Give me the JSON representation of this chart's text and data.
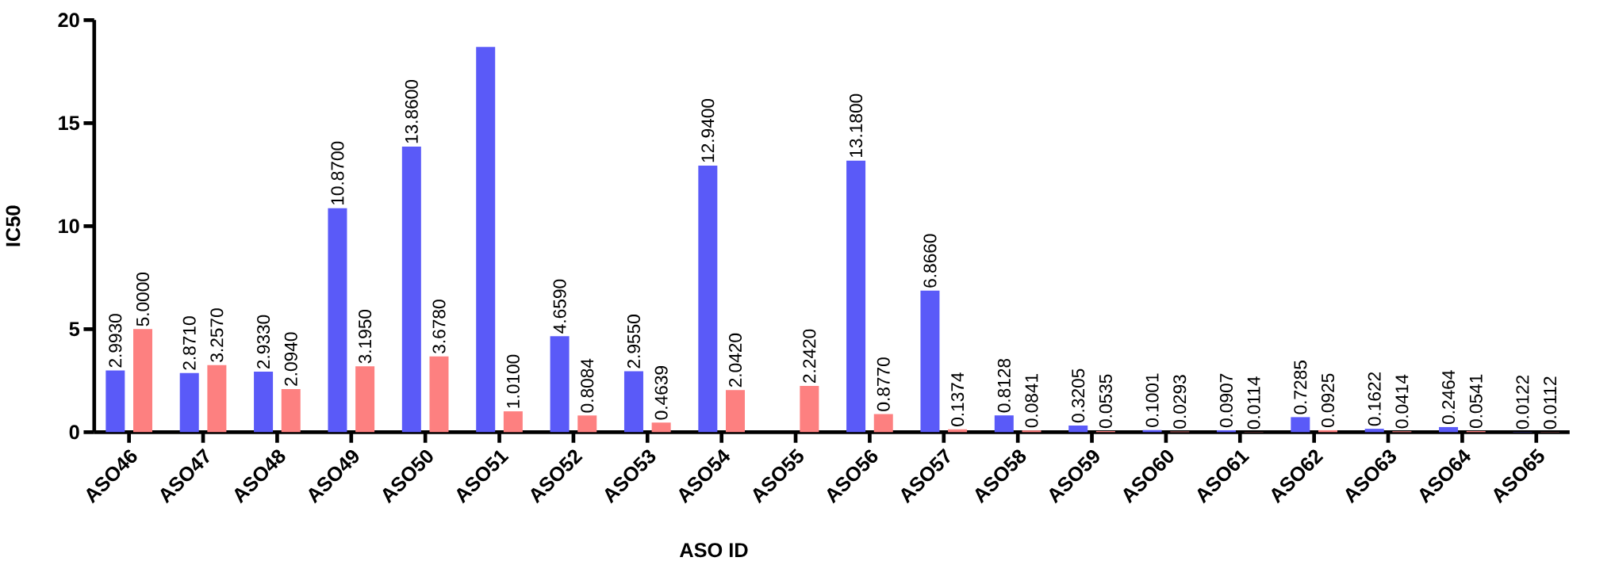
{
  "chart_data": {
    "type": "bar",
    "xlabel": "ASO ID",
    "ylabel": "IC50",
    "categories": [
      "ASO46",
      "ASO47",
      "ASO48",
      "ASO49",
      "ASO50",
      "ASO51",
      "ASO52",
      "ASO53",
      "ASO54",
      "ASO55",
      "ASO56",
      "ASO57",
      "ASO58",
      "ASO59",
      "ASO60",
      "ASO61",
      "ASO62",
      "ASO63",
      "ASO64",
      "ASO65"
    ],
    "series": [
      {
        "color": "#5a5af8",
        "values": [
          2.993,
          2.871,
          2.933,
          10.87,
          13.86,
          18.7,
          4.659,
          2.955,
          12.94,
          null,
          13.18,
          6.866,
          0.8128,
          0.3205,
          0.1001,
          0.0907,
          0.7285,
          0.1622,
          0.2464,
          0.0122
        ],
        "value_labels": [
          "2.9930",
          "2.8710",
          "2.9330",
          "10.8700",
          "13.8600",
          null,
          "4.6590",
          "2.9550",
          "12.9400",
          null,
          "13.1800",
          "6.8660",
          "0.8128",
          "0.3205",
          "0.1001",
          "0.0907",
          "0.7285",
          "0.1622",
          "0.2464",
          "0.0122"
        ]
      },
      {
        "color": "#fd8080",
        "values": [
          5.0,
          3.257,
          2.094,
          3.195,
          3.678,
          1.01,
          0.8084,
          0.4639,
          2.042,
          2.242,
          0.877,
          0.1374,
          0.0841,
          0.0535,
          0.0293,
          0.0114,
          0.0925,
          0.0414,
          0.0541,
          0.0112
        ],
        "value_labels": [
          "5.0000",
          "3.2570",
          "2.0940",
          "3.1950",
          "3.6780",
          "1.0100",
          "0.8084",
          "0.4639",
          "2.0420",
          "2.2420",
          "0.8770",
          "0.1374",
          "0.0841",
          "0.0535",
          "0.0293",
          "0.0114",
          "0.0925",
          "0.0414",
          "0.0541",
          "0.0112"
        ]
      }
    ],
    "ylim": [
      0,
      20
    ],
    "yticks": [
      0,
      5,
      10,
      15,
      20
    ]
  }
}
